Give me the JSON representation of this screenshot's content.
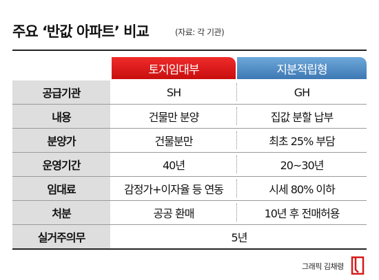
{
  "header": {
    "title": "주요 ‘반값 아파트’ 비교",
    "source": "(자료: 각 기관)"
  },
  "columns": [
    "토지임대부",
    "지분적립형"
  ],
  "rows": [
    {
      "label": "공급기관",
      "values": [
        "SH",
        "GH"
      ]
    },
    {
      "label": "내용",
      "values": [
        "건물만 분양",
        "집값 분할 납부"
      ]
    },
    {
      "label": "분양가",
      "values": [
        "건물분만",
        "최초 25% 부담"
      ]
    },
    {
      "label": "운영기간",
      "values": [
        "40년",
        "20~30년"
      ]
    },
    {
      "label": "임대료",
      "values": [
        "감정가+이자율 등 연동",
        "시세 80% 이하"
      ]
    },
    {
      "label": "처분",
      "values": [
        "공공 환매",
        "10년 후 전매허용"
      ]
    }
  ],
  "last_row": {
    "label": "실거주의무",
    "value": "5년"
  },
  "credit": "그래픽 김채령",
  "logo_icon": "document-logo-icon",
  "colors": {
    "red_header": "#d91b1b",
    "blue_header": "#5a92c8",
    "label_bg": "#dedede"
  }
}
